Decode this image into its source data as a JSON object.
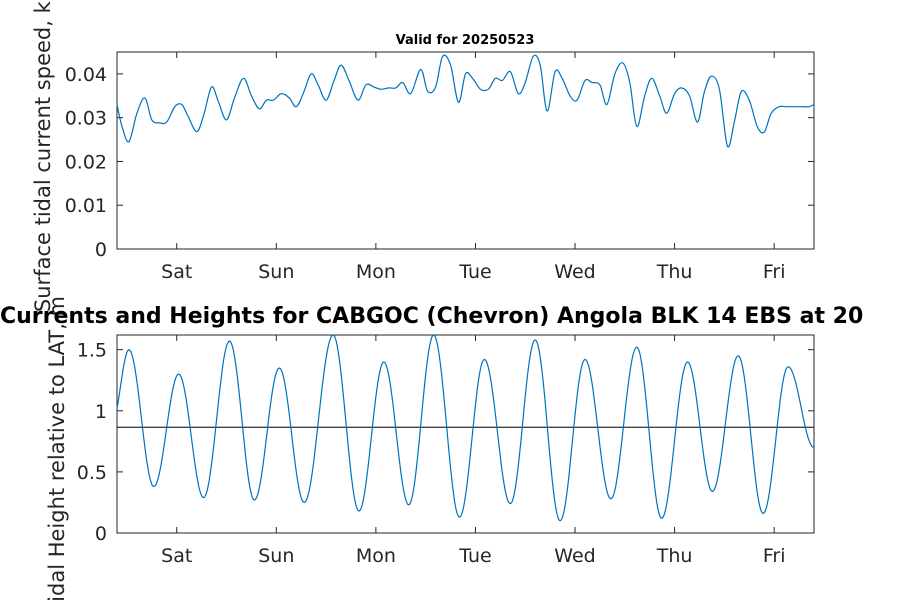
{
  "chart_data": [
    {
      "type": "line",
      "title": "Valid for 20250523",
      "ylabel": "Surface tidal current speed, kn",
      "xlim": [
        0,
        7
      ],
      "ylim": [
        0,
        0.045
      ],
      "yticks": [
        0,
        0.01,
        0.02,
        0.03,
        0.04
      ],
      "ytick_labels": [
        "0",
        "0.01",
        "0.02",
        "0.03",
        "0.04"
      ],
      "xticks": [
        0.6,
        1.6,
        2.6,
        3.6,
        4.6,
        5.6,
        6.6
      ],
      "xtick_labels": [
        "Sat",
        "Sun",
        "Mon",
        "Tue",
        "Wed",
        "Thu",
        "Fri"
      ],
      "series": [
        {
          "color": "#0072BD",
          "x": [
            0.0,
            0.05,
            0.12,
            0.2,
            0.28,
            0.35,
            0.43,
            0.5,
            0.58,
            0.65,
            0.71,
            0.8,
            0.87,
            0.95,
            1.02,
            1.1,
            1.18,
            1.27,
            1.35,
            1.43,
            1.5,
            1.57,
            1.65,
            1.73,
            1.8,
            1.87,
            1.95,
            2.02,
            2.1,
            2.18,
            2.25,
            2.33,
            2.42,
            2.5,
            2.58,
            2.65,
            2.73,
            2.8,
            2.87,
            2.95,
            3.05,
            3.12,
            3.2,
            3.27,
            3.35,
            3.43,
            3.5,
            3.57,
            3.65,
            3.73,
            3.8,
            3.87,
            3.95,
            4.03,
            4.1,
            4.18,
            4.25,
            4.32,
            4.4,
            4.47,
            4.55,
            4.62,
            4.7,
            4.77,
            4.85,
            4.92,
            5.0,
            5.08,
            5.15,
            5.22,
            5.3,
            5.37,
            5.45,
            5.52,
            5.6,
            5.67,
            5.75,
            5.83,
            5.9,
            5.97,
            6.05,
            6.13,
            6.2,
            6.27,
            6.35,
            6.43,
            6.5,
            6.57,
            6.65,
            6.72,
            6.8,
            6.87,
            6.95,
            7.0
          ],
          "y": [
            0.033,
            0.028,
            0.0245,
            0.031,
            0.0345,
            0.0295,
            0.0288,
            0.029,
            0.0325,
            0.033,
            0.0305,
            0.0268,
            0.0305,
            0.037,
            0.0335,
            0.0295,
            0.0345,
            0.039,
            0.035,
            0.032,
            0.034,
            0.034,
            0.0355,
            0.0345,
            0.0325,
            0.0355,
            0.04,
            0.0375,
            0.034,
            0.0385,
            0.042,
            0.0385,
            0.034,
            0.0375,
            0.037,
            0.0365,
            0.0368,
            0.0368,
            0.038,
            0.0355,
            0.041,
            0.036,
            0.037,
            0.044,
            0.042,
            0.0335,
            0.04,
            0.039,
            0.0365,
            0.0365,
            0.039,
            0.0385,
            0.0405,
            0.0355,
            0.038,
            0.044,
            0.042,
            0.0315,
            0.0405,
            0.039,
            0.035,
            0.034,
            0.0385,
            0.038,
            0.0375,
            0.033,
            0.04,
            0.0425,
            0.038,
            0.028,
            0.035,
            0.039,
            0.035,
            0.031,
            0.0355,
            0.0368,
            0.035,
            0.029,
            0.036,
            0.0395,
            0.0365,
            0.0235,
            0.029,
            0.036,
            0.034,
            0.028,
            0.0267,
            0.031,
            0.0325,
            0.0325,
            0.0325,
            0.0325,
            0.0325,
            0.033
          ]
        }
      ]
    },
    {
      "type": "line",
      "title": "Currents and Heights for CABGOC (Chevron)  Angola BLK 14  EBS at 20",
      "ylabel": "Tidal Height relative to LAT, m",
      "xlim": [
        0,
        7
      ],
      "ylim": [
        0,
        1.62
      ],
      "yticks": [
        0,
        0.5,
        1,
        1.5
      ],
      "ytick_labels": [
        "0",
        "0.5",
        "1",
        "1.5"
      ],
      "xticks": [
        0.6,
        1.6,
        2.6,
        3.6,
        4.6,
        5.6,
        6.6
      ],
      "xtick_labels": [
        "Sat",
        "Sun",
        "Mon",
        "Tue",
        "Wed",
        "Thu",
        "Fri"
      ],
      "reference_line": 0.865,
      "series": [
        {
          "color": "#0072BD",
          "extrema_x": [
            -0.05,
            0.12,
            0.37,
            0.62,
            0.87,
            1.13,
            1.38,
            1.63,
            1.88,
            2.17,
            2.43,
            2.68,
            2.93,
            3.18,
            3.44,
            3.69,
            3.95,
            4.2,
            4.45,
            4.7,
            4.96,
            5.22,
            5.47,
            5.73,
            5.98,
            6.24,
            6.49,
            6.74,
            7.0
          ],
          "extrema_y": [
            0.9,
            1.5,
            0.38,
            1.3,
            0.29,
            1.57,
            0.27,
            1.35,
            0.25,
            1.62,
            0.18,
            1.4,
            0.23,
            1.62,
            0.13,
            1.42,
            0.24,
            1.58,
            0.1,
            1.42,
            0.28,
            1.52,
            0.12,
            1.4,
            0.34,
            1.45,
            0.16,
            1.36,
            0.7
          ]
        }
      ]
    }
  ]
}
